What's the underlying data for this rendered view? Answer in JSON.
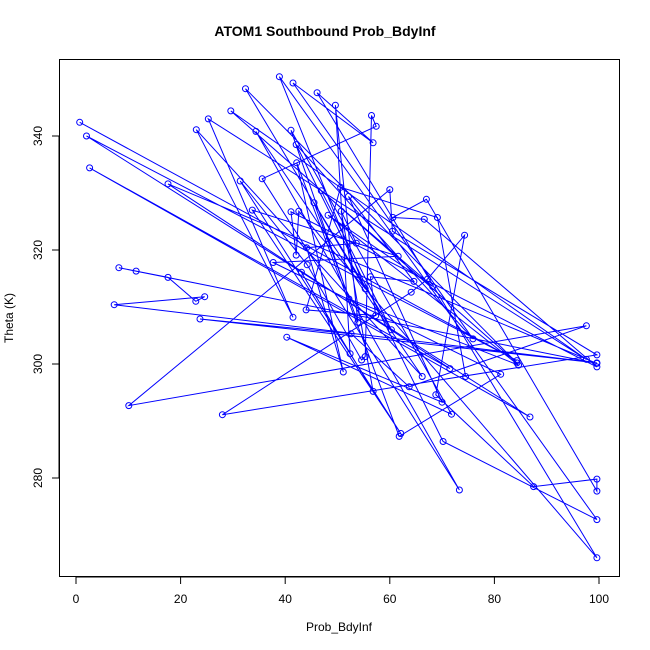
{
  "chart_data": {
    "type": "scatter",
    "mode": "lines+points",
    "title": "ATOM1 Southbound Prob_BdyInf",
    "xlabel": "Prob_BdyInf",
    "ylabel": "Theta (K)",
    "xlim": [
      0,
      100
    ],
    "ylim": [
      270,
      350
    ],
    "xticks": [
      0,
      20,
      40,
      60,
      80,
      100
    ],
    "yticks": [
      280,
      300,
      320,
      340
    ],
    "grid": false,
    "color": "#0000ff",
    "series": [
      {
        "points": [
          [
            0.7,
            342.4
          ],
          [
            84.3,
            300.6
          ],
          [
            2,
            340
          ],
          [
            86.8,
            290.7
          ],
          [
            2.6,
            334.4
          ],
          [
            71.5,
            299.2
          ],
          [
            17.6,
            331.6
          ],
          [
            99.6,
            300.1
          ],
          [
            8.2,
            316.9
          ],
          [
            11.5,
            316.3
          ],
          [
            17.6,
            315.2
          ],
          [
            22.9,
            311
          ],
          [
            24.6,
            311.8
          ],
          [
            7.3,
            310.4
          ],
          [
            99.6,
            300.2
          ],
          [
            23.7,
            307.9
          ],
          [
            52.6,
            305.3
          ],
          [
            63.7,
            296
          ],
          [
            97.6,
            306.7
          ],
          [
            10.1,
            292.7
          ],
          [
            60,
            330.6
          ],
          [
            60.5,
            323.3
          ],
          [
            99.6,
            301.6
          ],
          [
            28,
            291.1
          ],
          [
            64.1,
            312.6
          ],
          [
            67.2,
            314.9
          ],
          [
            74.3,
            322.6
          ],
          [
            68.8,
            294.6
          ],
          [
            87.5,
            278.5
          ],
          [
            99.6,
            279.8
          ],
          [
            99.6,
            277.7
          ],
          [
            67,
            328.9
          ],
          [
            60.6,
            325.7
          ],
          [
            66.6,
            325.4
          ],
          [
            99.6,
            299.5
          ],
          [
            41.1,
            326.7
          ],
          [
            42.1,
            319.1
          ],
          [
            42.6,
            326.8
          ],
          [
            99.6,
            266
          ],
          [
            46.1,
            347.6
          ],
          [
            56.8,
            338.8
          ],
          [
            41.5,
            349.3
          ],
          [
            75.9,
            304.4
          ],
          [
            42.1,
            338.5
          ],
          [
            70.2,
            286.4
          ],
          [
            99.6,
            272.7
          ],
          [
            38.9,
            350.4
          ],
          [
            55.3,
            313.2
          ],
          [
            32.4,
            348.3
          ],
          [
            84.3,
            300.2
          ],
          [
            29.6,
            344.4
          ],
          [
            97.6,
            300.8
          ],
          [
            25.3,
            343
          ],
          [
            41.5,
            308.2
          ],
          [
            23,
            341.1
          ],
          [
            66.2,
            297.8
          ],
          [
            34.4,
            340.8
          ],
          [
            73.3,
            277.9
          ],
          [
            35.6,
            332.5
          ],
          [
            57.4,
            341.7
          ],
          [
            56.5,
            343.6
          ],
          [
            55.3,
            301.3
          ],
          [
            54.6,
            300.7
          ],
          [
            44.2,
            317.4
          ],
          [
            31.4,
            332.1
          ],
          [
            62.1,
            287.8
          ],
          [
            33.7,
            327
          ],
          [
            61.6,
            318.9
          ],
          [
            37.7,
            317.8
          ],
          [
            81.2,
            298.2
          ],
          [
            61.8,
            287.3
          ],
          [
            42.2,
            335.3
          ],
          [
            51.1,
            298.6
          ],
          [
            44.1,
            320.4
          ],
          [
            53.6,
            321.2
          ],
          [
            50.7,
            326.8
          ],
          [
            56.8,
            295.2
          ],
          [
            43.1,
            316.1
          ],
          [
            52.4,
            301.8
          ],
          [
            49.6,
            345.4
          ],
          [
            53.9,
            307.3
          ],
          [
            45.5,
            328.3
          ],
          [
            60.3,
            306
          ],
          [
            46.9,
            330.4
          ],
          [
            68.2,
            313.6
          ],
          [
            48.2,
            326.1
          ],
          [
            84.6,
            299.8
          ],
          [
            52.2,
            311.4
          ],
          [
            41.1,
            341
          ],
          [
            71.8,
            291.2
          ],
          [
            40.3,
            304.7
          ],
          [
            70,
            293.3
          ],
          [
            52.1,
            329.4
          ],
          [
            64.6,
            314.5
          ],
          [
            56.3,
            315.3
          ],
          [
            57.3,
            308.5
          ],
          [
            44,
            309.5
          ],
          [
            50.6,
            331
          ],
          [
            69.1,
            325.7
          ],
          [
            74.5,
            297.8
          ]
        ]
      }
    ]
  }
}
